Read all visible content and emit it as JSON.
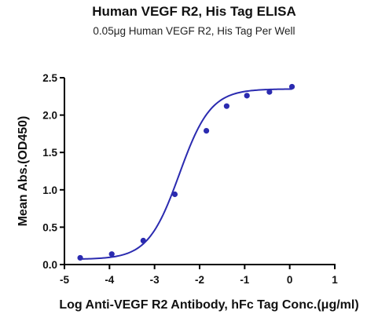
{
  "chart_data": {
    "type": "scatter",
    "title": "Human VEGF R2, His Tag ELISA",
    "subtitle": "0.05μg Human VEGF R2, His Tag Per Well",
    "xlabel": "Log Anti-VEGF R2 Antibody, hFc Tag Conc.(μg/ml)",
    "ylabel": "Mean Abs.(OD450)",
    "xlim": [
      -5,
      1
    ],
    "ylim": [
      0,
      2.5
    ],
    "x_ticks": [
      "-5",
      "-4",
      "-3",
      "-2",
      "-1",
      "0",
      "1"
    ],
    "y_ticks": [
      "0.0",
      "0.5",
      "1.0",
      "1.5",
      "2.0",
      "2.5"
    ],
    "grid": false,
    "colors": {
      "series": "#2b2bb0"
    },
    "series": [
      {
        "points": [
          {
            "x": -4.65,
            "y": 0.09
          },
          {
            "x": -3.95,
            "y": 0.14
          },
          {
            "x": -3.25,
            "y": 0.32
          },
          {
            "x": -2.55,
            "y": 0.94
          },
          {
            "x": -1.85,
            "y": 1.79
          },
          {
            "x": -1.4,
            "y": 2.12
          },
          {
            "x": -0.95,
            "y": 2.26
          },
          {
            "x": -0.45,
            "y": 2.31
          },
          {
            "x": 0.05,
            "y": 2.38
          }
        ],
        "fit": {
          "model": "4PL",
          "bottom": 0.07,
          "top": 2.35,
          "logEC50": -2.45,
          "hill": 1.25,
          "x_range": [
            -4.65,
            0.05
          ]
        }
      }
    ]
  }
}
